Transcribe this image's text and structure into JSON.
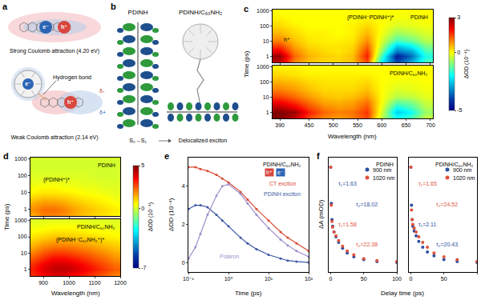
{
  "panel_labels": [
    "a",
    "b",
    "c",
    "d",
    "e",
    "f"
  ],
  "diagram_a": {
    "top": {
      "electron": "e⁻",
      "hole": "h⁺",
      "caption": "Strong Coulomb attraction (4.20 eV)"
    },
    "bottom": {
      "electron": "e⁻",
      "hole": "h⁺",
      "bond": "Hydrogen bond",
      "partial_negative": "δ-",
      "partial_positive": "δ+",
      "caption": "Weak Coulomb attraction (2.14 eV)"
    }
  },
  "diagram_b": {
    "left": "PDINH",
    "right": "PDINH/C₆₀NH₂",
    "transition": "S₀→S₁",
    "state": "Delocalized exciton"
  },
  "chart_data": [
    {
      "type": "heatmap",
      "xlabel": "Wavelength (nm)",
      "ylabel": "Time (ps)",
      "log": "y",
      "x": [
        390,
        420,
        450,
        480,
        510,
        540,
        570,
        600,
        630,
        660,
        690
      ],
      "y": [
        0.5,
        1,
        2,
        5,
        10,
        30,
        100,
        300,
        1000
      ],
      "xlim": [
        375,
        705
      ],
      "xticks": [
        390,
        450,
        500,
        550,
        600,
        650,
        700
      ],
      "ylim": [
        0.4,
        1200
      ],
      "yticks": [
        1,
        10,
        100,
        1000
      ],
      "colorbar": {
        "title": "ΔOD (10⁻⁴)",
        "range": [
          -5,
          3
        ],
        "ticks": [
          -5,
          0,
          3
        ]
      },
      "subplots": [
        {
          "label": "PDINH",
          "annotations": [
            "h⁺",
            "(PDINH⁻PDINH⁺)*"
          ],
          "z": [
            [
              2.5,
              1.0,
              0.5,
              0.3,
              0.3,
              0.5,
              1.5,
              -2,
              -4,
              -3,
              -1.5
            ],
            [
              2.8,
              1.2,
              0.6,
              0.4,
              0.3,
              0.5,
              1.8,
              -1.5,
              -4.5,
              -3.5,
              -1.8
            ],
            [
              2.2,
              1.0,
              0.5,
              0.3,
              0.2,
              0.4,
              1.6,
              -1,
              -3.5,
              -3,
              -1.5
            ],
            [
              1.5,
              0.7,
              0.3,
              0.2,
              0.2,
              0.3,
              1.2,
              -0.5,
              -2.5,
              -2,
              -1
            ],
            [
              1.0,
              0.5,
              0.2,
              0.1,
              0.1,
              0.2,
              0.9,
              -0.3,
              -1.5,
              -1.2,
              -0.6
            ],
            [
              0.6,
              0.3,
              0.1,
              0.1,
              0,
              0.1,
              0.6,
              -0.1,
              -0.8,
              -0.6,
              -0.3
            ],
            [
              0.3,
              0.1,
              0,
              0,
              0,
              0.1,
              0.3,
              0,
              -0.3,
              -0.2,
              -0.1
            ],
            [
              0.1,
              0,
              0,
              0,
              0,
              0,
              0.1,
              0,
              -0.1,
              -0.1,
              0
            ],
            [
              0,
              0,
              0,
              0,
              0,
              0,
              0,
              0,
              0,
              0,
              0
            ]
          ]
        },
        {
          "label": "PDINH/C₆₀NH₂",
          "annotations": [],
          "z": [
            [
              3,
              2.5,
              1.5,
              1,
              0.8,
              1,
              1.5,
              -0.5,
              -2,
              -1.5,
              -0.5
            ],
            [
              3,
              2.8,
              1.8,
              1.2,
              1,
              1.1,
              1.6,
              -0.3,
              -2.5,
              -2,
              -0.8
            ],
            [
              2.6,
              2.2,
              1.5,
              1,
              0.8,
              0.9,
              1.4,
              -0.2,
              -2,
              -1.5,
              -0.6
            ],
            [
              2,
              1.6,
              1.1,
              0.7,
              0.6,
              0.7,
              1.1,
              0,
              -1.2,
              -1,
              -0.4
            ],
            [
              1.5,
              1.2,
              0.8,
              0.5,
              0.4,
              0.5,
              0.8,
              0,
              -0.6,
              -0.5,
              -0.2
            ],
            [
              1,
              0.8,
              0.5,
              0.3,
              0.3,
              0.3,
              0.5,
              0,
              -0.3,
              -0.2,
              -0.1
            ],
            [
              0.6,
              0.5,
              0.3,
              0.2,
              0.2,
              0.2,
              0.3,
              0,
              -0.1,
              -0.1,
              0
            ],
            [
              0.3,
              0.2,
              0.1,
              0.1,
              0.1,
              0.1,
              0.1,
              0,
              0,
              0,
              0
            ],
            [
              0.1,
              0.1,
              0,
              0,
              0,
              0,
              0,
              0,
              0,
              0,
              0
            ]
          ]
        }
      ]
    },
    {
      "type": "heatmap",
      "xlabel": "Wavelength (nm)",
      "ylabel": "Time (ps)",
      "log": "y",
      "x": [
        860,
        900,
        940,
        980,
        1020,
        1060,
        1100,
        1140,
        1180
      ],
      "y": [
        0.5,
        1,
        2,
        5,
        10,
        30,
        100,
        300,
        1000
      ],
      "xlim": [
        850,
        1200
      ],
      "xticks": [
        900,
        1000,
        1100,
        1200
      ],
      "ylim": [
        0.4,
        1200
      ],
      "yticks": [
        1,
        10,
        100,
        1000
      ],
      "colorbar": {
        "title": "ΔOD (10⁻⁴)",
        "range": [
          -7,
          5
        ],
        "ticks": [
          -7,
          0,
          5
        ]
      },
      "subplots": [
        {
          "label": "PDINH",
          "annotations": [
            "(PDINH⁺)*"
          ],
          "z": [
            [
              1.5,
              2,
              2,
              1.8,
              1.5,
              1.2,
              1,
              0.8,
              0.6
            ],
            [
              1.8,
              2.2,
              2.2,
              2,
              1.6,
              1.3,
              1.1,
              0.9,
              0.7
            ],
            [
              1.5,
              1.8,
              1.8,
              1.6,
              1.3,
              1.1,
              0.9,
              0.7,
              0.5
            ],
            [
              1,
              1.2,
              1.2,
              1.1,
              0.9,
              0.7,
              0.6,
              0.5,
              0.3
            ],
            [
              0.6,
              0.8,
              0.8,
              0.7,
              0.6,
              0.5,
              0.4,
              0.3,
              0.2
            ],
            [
              0.3,
              0.4,
              0.4,
              0.3,
              0.3,
              0.2,
              0.2,
              0.1,
              0.1
            ],
            [
              0.1,
              0.1,
              0.1,
              0.1,
              0.1,
              0.1,
              0,
              0,
              0
            ],
            [
              0,
              0,
              0,
              0,
              0,
              0,
              0,
              0,
              0
            ],
            [
              0,
              0,
              0,
              0,
              0,
              0,
              0,
              0,
              0
            ]
          ]
        },
        {
          "label": "PDINH/C₆₀NH₂",
          "annotations": [
            "(PDINH⁻C₆₀NH₂⁺)*"
          ],
          "z": [
            [
              3,
              3.5,
              3.8,
              3.8,
              3.5,
              3.2,
              2.8,
              2.4,
              2
            ],
            [
              3.2,
              3.8,
              4.2,
              4.2,
              4,
              3.6,
              3.2,
              2.8,
              2.4
            ],
            [
              3,
              3.6,
              4,
              4,
              3.8,
              3.4,
              3,
              2.6,
              2.2
            ],
            [
              2.5,
              3,
              3.4,
              3.4,
              3.2,
              2.9,
              2.5,
              2.2,
              1.8
            ],
            [
              2,
              2.5,
              2.8,
              2.8,
              2.6,
              2.4,
              2.1,
              1.8,
              1.5
            ],
            [
              1.4,
              1.8,
              2,
              2,
              1.9,
              1.7,
              1.5,
              1.3,
              1.1
            ],
            [
              0.8,
              1,
              1.2,
              1.2,
              1.1,
              1,
              0.9,
              0.7,
              0.6
            ],
            [
              0.4,
              0.5,
              0.6,
              0.6,
              0.6,
              0.5,
              0.4,
              0.4,
              0.3
            ],
            [
              0.1,
              0.2,
              0.2,
              0.2,
              0.2,
              0.2,
              0.1,
              0.1,
              0.1
            ]
          ]
        }
      ]
    },
    {
      "type": "line",
      "xlabel": "Time (ps)",
      "ylabel": "ΔOD (10⁻⁴)",
      "log": "x",
      "marker": "circle",
      "line_style": "solid",
      "x": [
        0.1,
        0.15,
        0.2,
        0.3,
        0.5,
        0.7,
        1,
        2,
        3,
        5,
        10,
        20,
        30,
        50,
        100
      ],
      "xlim": [
        0.1,
        100
      ],
      "xticks": [
        {
          "value": 0.1,
          "label": "10⁻¹"
        },
        {
          "value": 1,
          "label": "10⁰"
        },
        {
          "value": 10,
          "label": "10¹"
        },
        {
          "value": 100,
          "label": "10²"
        }
      ],
      "ylim": [
        -0.5,
        5.5
      ],
      "yticks": [
        0,
        2,
        4
      ],
      "annotations": [
        "PDINH/C₆₀NH₂",
        "h⁺",
        "e⁻"
      ],
      "series": [
        {
          "name": "CT exciton",
          "color": "#d94a35",
          "values": [
            5,
            5,
            4.9,
            4.8,
            4.6,
            4.4,
            4.2,
            3.7,
            3.3,
            2.8,
            2.2,
            1.6,
            1.3,
            1,
            0.6
          ]
        },
        {
          "name": "PDINH exciton",
          "color": "#3d59a6",
          "values": [
            2.8,
            3,
            3,
            2.9,
            2.5,
            2.2,
            1.9,
            1.3,
            1,
            0.7,
            0.4,
            0.2,
            0.1,
            0.05,
            0
          ]
        },
        {
          "name": "Polaron",
          "color": "#9d8fca",
          "values": [
            0.2,
            0.8,
            1.5,
            2.5,
            3.5,
            4,
            4.1,
            3.6,
            3.1,
            2.5,
            1.8,
            1.2,
            0.9,
            0.6,
            0.3
          ]
        }
      ]
    },
    {
      "type": "scatter",
      "xlabel": "Delay time (ps)",
      "ylabel": "ΔA (mOD)",
      "marker": "circle",
      "tick_labels": "x",
      "x": [
        0,
        1,
        2,
        3,
        5,
        8,
        12,
        18,
        25,
        35,
        50,
        70,
        100
      ],
      "xlim": [
        -3,
        100
      ],
      "xticks": [
        0,
        50,
        100
      ],
      "ylim": [
        -0.1,
        1.1
      ],
      "subplots": [
        {
          "label": "PDINH",
          "series": [
            {
              "name": "900 nm",
              "color": "#2f4fa0",
              "values": [
                1,
                0.62,
                0.45,
                0.38,
                0.32,
                0.27,
                0.21,
                0.15,
                0.1,
                0.06,
                0.03,
                0.01,
                0
              ]
            },
            {
              "name": "1020 nm",
              "color": "#e0533d",
              "values": [
                1,
                0.6,
                0.43,
                0.37,
                0.32,
                0.28,
                0.23,
                0.17,
                0.12,
                0.08,
                0.04,
                0.02,
                0.01
              ]
            }
          ],
          "annotations": [
            {
              "text": "τ₁=1.63",
              "series": "900 nm"
            },
            {
              "text": "τ₂=18.02",
              "series": "900 nm"
            },
            {
              "text": "τ₁=1.58",
              "series": "1020 nm"
            },
            {
              "text": "τ₂=22.38",
              "series": "1020 nm"
            }
          ]
        },
        {
          "label": "PDINH/C₆₀NH₂",
          "series": [
            {
              "name": "900 nm",
              "color": "#2f4fa0",
              "values": [
                1,
                0.6,
                0.45,
                0.38,
                0.33,
                0.28,
                0.22,
                0.16,
                0.11,
                0.07,
                0.03,
                0.01,
                0
              ]
            },
            {
              "name": "1020 nm",
              "color": "#e0533d",
              "values": [
                1,
                0.55,
                0.45,
                0.4,
                0.36,
                0.32,
                0.27,
                0.21,
                0.16,
                0.1,
                0.06,
                0.03,
                0.01
              ]
            }
          ],
          "annotations": [
            {
              "text": "τ₁=1.65",
              "series": "1020 nm"
            },
            {
              "text": "τ₂=24.52",
              "series": "1020 nm"
            },
            {
              "text": "τ₁=2.11",
              "series": "900 nm"
            },
            {
              "text": "τ₂=20.43",
              "series": "900 nm"
            }
          ]
        }
      ]
    }
  ]
}
